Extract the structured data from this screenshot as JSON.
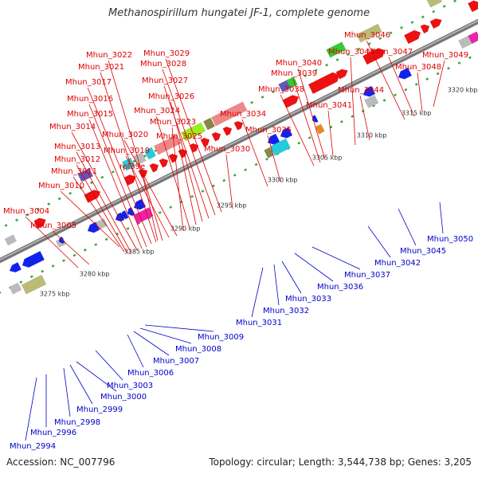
{
  "title": "Methanospirillum hungatei JF-1, complete genome",
  "accession": "Accession: NC_007796",
  "summary": "Topology: circular; Length: 3,544,738 bp; Genes: 3,205",
  "colors": {
    "red": "#ee1111",
    "pink": "#ee8888",
    "lightgreen": "#99ee22",
    "green": "#33cc33",
    "cyan": "#22ccdd",
    "olive": "#bbbb77",
    "darkolive": "#888844",
    "gray": "#bbbbbb",
    "blue": "#1122ee",
    "purple": "#6655bb",
    "magenta": "#ee22aa",
    "orange": "#ee8822",
    "label_red": "#dd0000",
    "label_blue": "#0000cc",
    "axis": "#888888"
  },
  "scale_ticks": [
    {
      "label": "3275 kbp"
    },
    {
      "label": "3280 kbp"
    },
    {
      "label": "3285 kbp"
    },
    {
      "label": "3290 kbp"
    },
    {
      "label": "3295 kbp"
    },
    {
      "label": "3300 kbp"
    },
    {
      "label": "3305 kbp"
    },
    {
      "label": "3310 kbp"
    },
    {
      "label": "3315 kbp"
    },
    {
      "label": "3320 kbp"
    }
  ],
  "top_labels": [
    {
      "name": "Mhun_3004"
    },
    {
      "name": "Mhun_3005"
    },
    {
      "name": "Mhun_3010"
    },
    {
      "name": "Mhun_3011"
    },
    {
      "name": "Mhun_3012"
    },
    {
      "name": "Mhun_3013"
    },
    {
      "name": "Mhun_3014"
    },
    {
      "name": "Mhun_3015"
    },
    {
      "name": "Mhun_3016"
    },
    {
      "name": "Mhun_3017"
    },
    {
      "name": "Mhun_3021"
    },
    {
      "name": "Mhun_3022"
    },
    {
      "name": "rpl39e"
    },
    {
      "name": "Mhun_3019"
    },
    {
      "name": "Mhun_3020"
    },
    {
      "name": "Mhun_3023"
    },
    {
      "name": "Mhun_3024"
    },
    {
      "name": "Mhun_3025"
    },
    {
      "name": "Mhun_3026"
    },
    {
      "name": "Mhun_3027"
    },
    {
      "name": "Mhun_3028"
    },
    {
      "name": "Mhun_3029"
    },
    {
      "name": "Mhun_3030"
    },
    {
      "name": "Mhun_3034"
    },
    {
      "name": "Mhun_3035"
    },
    {
      "name": "Mhun_3038"
    },
    {
      "name": "Mhun_3039"
    },
    {
      "name": "Mhun_3040"
    },
    {
      "name": "Mhun_3041"
    },
    {
      "name": "Mhun_3043"
    },
    {
      "name": "Mhun_3044"
    },
    {
      "name": "Mhun_3046"
    },
    {
      "name": "Mhun_3047"
    },
    {
      "name": "Mhun_3048"
    },
    {
      "name": "Mhun_3049"
    }
  ],
  "bottom_labels": [
    {
      "name": "Mhun_2994"
    },
    {
      "name": "Mhun_2996"
    },
    {
      "name": "Mhun_2998"
    },
    {
      "name": "Mhun_2999"
    },
    {
      "name": "Mhun_3000"
    },
    {
      "name": "Mhun_3003"
    },
    {
      "name": "Mhun_3006"
    },
    {
      "name": "Mhun_3007"
    },
    {
      "name": "Mhun_3008"
    },
    {
      "name": "Mhun_3009"
    },
    {
      "name": "Mhun_3031"
    },
    {
      "name": "Mhun_3032"
    },
    {
      "name": "Mhun_3033"
    },
    {
      "name": "Mhun_3036"
    },
    {
      "name": "Mhun_3037"
    },
    {
      "name": "Mhun_3042"
    },
    {
      "name": "Mhun_3045"
    },
    {
      "name": "Mhun_3050"
    }
  ]
}
